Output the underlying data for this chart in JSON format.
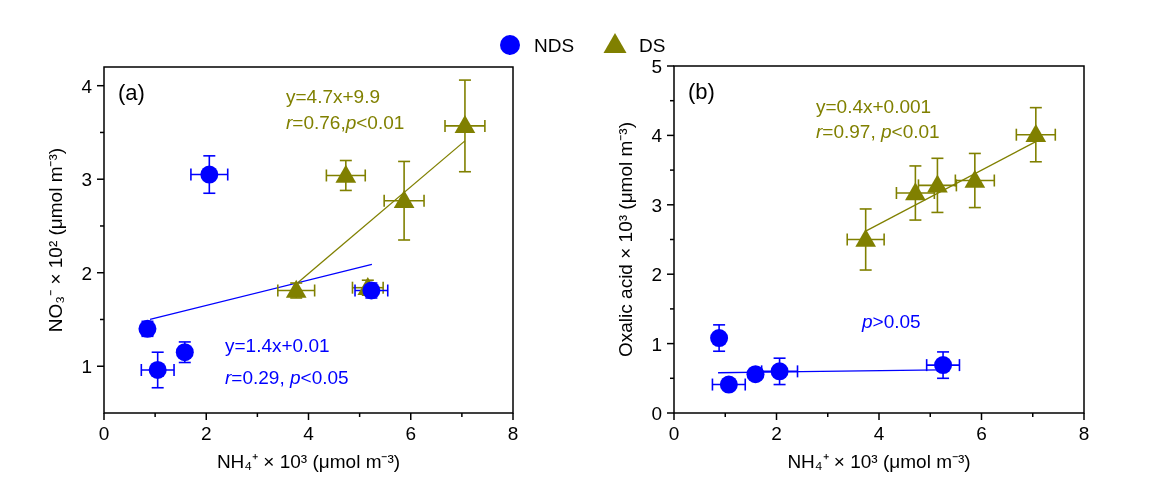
{
  "chart_data": [
    {
      "type": "scatter",
      "title": "(a)",
      "xlabel": "NH₄⁺ × 10³ (μmol m⁻³)",
      "ylabel": "NO₃⁻ × 10² (μmol m⁻³)",
      "xlim": [
        0,
        8
      ],
      "ylim": [
        0.5,
        4.2
      ],
      "xticks": [
        0,
        {
          "value": 1,
          "label": null
        },
        2,
        {
          "value": 3,
          "label": null
        },
        4,
        {
          "value": 5,
          "label": null
        },
        6,
        {
          "value": 7,
          "label": null
        },
        8
      ],
      "yticks": [
        1,
        {
          "value": 1.5,
          "label": null
        },
        2,
        {
          "value": 2.5,
          "label": null
        },
        3,
        {
          "value": 3.5,
          "label": null
        },
        4
      ],
      "legend": "top",
      "grid": false,
      "annotations": [
        "y=4.7x+9.9",
        "r=0.76,p<0.01",
        "y=1.4x+0.01",
        "r=0.29, p<0.05"
      ],
      "series": [
        {
          "name": "NDS",
          "marker": "circle",
          "color": "#0000ff",
          "x": [
            0.85,
            1.05,
            1.58,
            2.06,
            5.23
          ],
          "values": [
            1.4,
            0.96,
            1.15,
            3.05,
            1.81
          ],
          "errors": [
            0.08,
            0.19,
            0.11,
            0.2,
            0.08
          ],
          "xerrors": [
            null,
            0.32,
            null,
            0.36,
            0.32
          ]
        },
        {
          "name": "DS",
          "marker": "triangle",
          "color": "#808000",
          "x": [
            3.76,
            4.73,
            5.16,
            5.87,
            7.06
          ],
          "values": [
            1.81,
            3.04,
            1.84,
            2.77,
            3.57
          ],
          "errors": [
            0.08,
            0.16,
            0.08,
            0.42,
            0.49
          ],
          "xerrors": [
            0.36,
            0.38,
            0.3,
            0.39,
            0.39
          ]
        },
        {
          "type": "line",
          "marker": "none",
          "color": "#0000ff",
          "x": [
            0.9,
            5.24
          ],
          "values": [
            1.5,
            2.09
          ]
        },
        {
          "type": "line",
          "marker": "none",
          "color": "#808000",
          "x": [
            3.76,
            7.06
          ],
          "values": [
            1.88,
            3.41
          ]
        }
      ]
    },
    {
      "type": "scatter",
      "title": "(b)",
      "xlabel": "NH₄⁺ × 10³ (μmol m⁻³)",
      "ylabel": "Oxalic acid × 10³ (μmol m⁻³)",
      "xlim": [
        0,
        8
      ],
      "ylim": [
        0,
        5
      ],
      "xticks": [
        0,
        {
          "value": 1,
          "label": null
        },
        2,
        {
          "value": 3,
          "label": null
        },
        4,
        {
          "value": 5,
          "label": null
        },
        6,
        {
          "value": 7,
          "label": null
        },
        8
      ],
      "yticks": [
        0,
        {
          "value": 0.5,
          "label": null
        },
        1,
        {
          "value": 1.5,
          "label": null
        },
        2,
        {
          "value": 2.5,
          "label": null
        },
        3,
        {
          "value": 3.5,
          "label": null
        },
        4,
        {
          "value": 4.5,
          "label": null
        },
        5
      ],
      "grid": false,
      "annotations": [
        "y=0.4x+0.001",
        "r=0.97, p<0.01",
        "p>0.05"
      ],
      "series": [
        {
          "marker": "circle",
          "color": "#0000ff",
          "x": [
            0.88,
            1.07,
            1.59,
            2.06,
            5.25
          ],
          "values": [
            1.08,
            0.41,
            0.56,
            0.6,
            0.69
          ],
          "errors": [
            0.19,
            null,
            null,
            0.19,
            0.19
          ],
          "xerrors": [
            null,
            0.32,
            null,
            0.35,
            0.32
          ]
        },
        {
          "marker": "triangle",
          "color": "#808000",
          "x": [
            3.74,
            4.71,
            5.14,
            5.87,
            7.06
          ],
          "values": [
            2.5,
            3.17,
            3.28,
            3.35,
            4.01
          ],
          "errors": [
            0.44,
            0.39,
            0.39,
            0.39,
            0.39
          ],
          "xerrors": [
            0.36,
            0.37,
            0.37,
            0.38,
            0.38
          ]
        },
        {
          "type": "line",
          "marker": "none",
          "color": "#0000ff",
          "x": [
            0.86,
            5.2
          ],
          "values": [
            0.58,
            0.62
          ]
        },
        {
          "type": "line",
          "marker": "none",
          "color": "#808000",
          "x": [
            3.74,
            7.06
          ],
          "values": [
            2.62,
            3.91
          ]
        }
      ]
    }
  ]
}
